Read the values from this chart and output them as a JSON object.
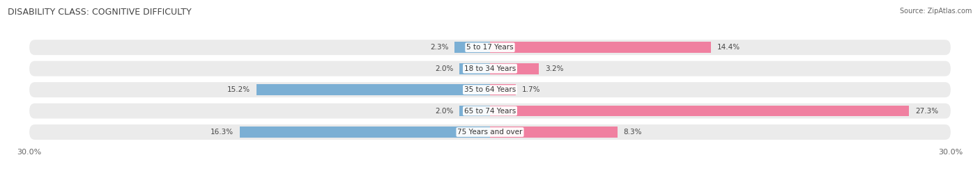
{
  "title": "DISABILITY CLASS: COGNITIVE DIFFICULTY",
  "source": "Source: ZipAtlas.com",
  "categories": [
    "5 to 17 Years",
    "18 to 34 Years",
    "35 to 64 Years",
    "65 to 74 Years",
    "75 Years and over"
  ],
  "male_values": [
    2.3,
    2.0,
    15.2,
    2.0,
    16.3
  ],
  "female_values": [
    14.4,
    3.2,
    1.7,
    27.3,
    8.3
  ],
  "male_color": "#7bafd4",
  "female_color": "#f080a0",
  "row_bg_color": "#ebebeb",
  "fig_bg_color": "#ffffff",
  "x_min": -30.0,
  "x_max": 30.0,
  "x_tick_labels": [
    "30.0%",
    "30.0%"
  ],
  "title_fontsize": 9,
  "label_fontsize": 7.5,
  "cat_fontsize": 7.5,
  "tick_fontsize": 8,
  "source_fontsize": 7
}
